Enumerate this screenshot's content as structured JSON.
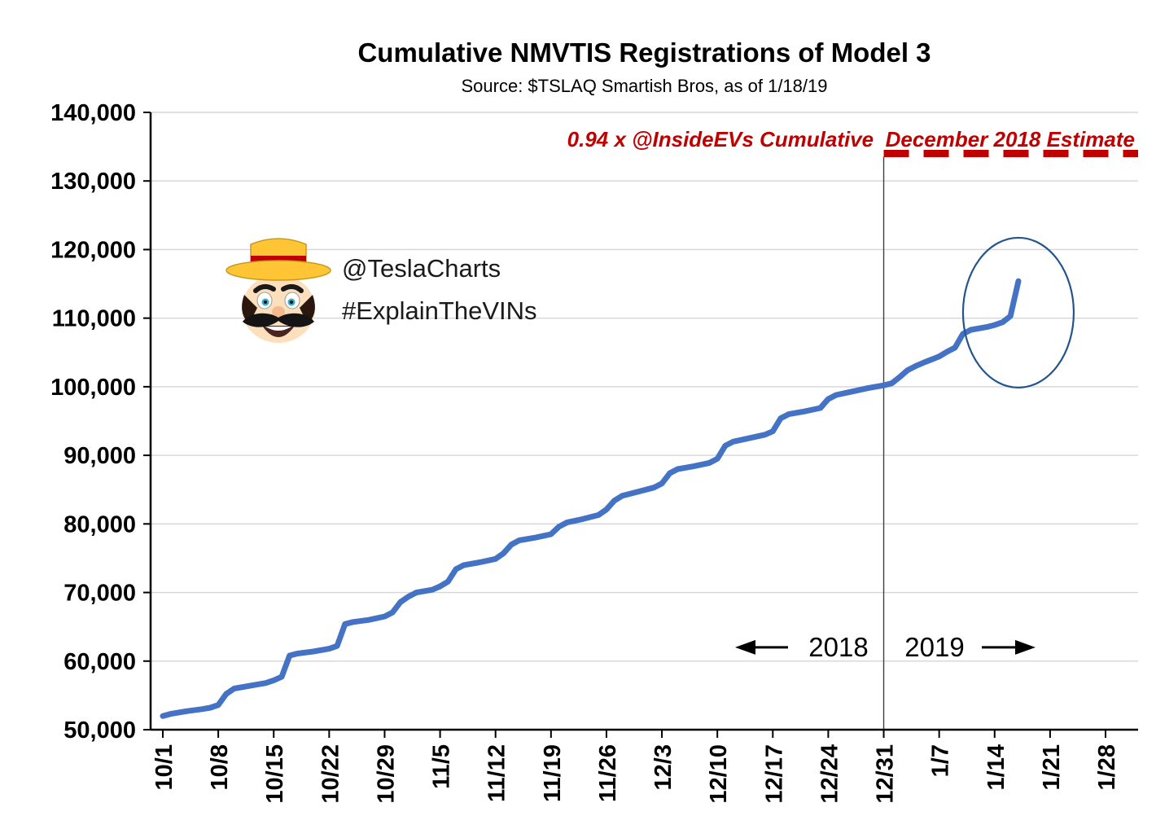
{
  "header": {
    "title": "Cumulative NMVTIS Registrations of Model 3",
    "subtitle": "Source: $TSLAQ Smartish Bros, as of 1/18/19"
  },
  "annotations": {
    "estimate_label": "0.94 x @InsideEVs Cumulative  December 2018 Estimate",
    "watermark_handle": "@TeslaCharts",
    "watermark_hashtag": "#ExplainTheVINs",
    "year_left": "2018",
    "year_right": "2019",
    "year_arrow_value": 62000
  },
  "colors": {
    "line": "#4472C4",
    "estimate": "#C00000",
    "ellipse": "#24548C",
    "grid": "#D6D6D6",
    "axis": "#000000",
    "divider": "#404040"
  },
  "chart_data": {
    "type": "line",
    "title": "Cumulative NMVTIS Registrations of Model 3",
    "subtitle": "Source: $TSLAQ Smartish Bros, as of 1/18/19",
    "xlabel": "",
    "ylabel": "",
    "grid": "horizontal",
    "legend": "none",
    "ylim": [
      50000,
      140000
    ],
    "y_tick_step": 10000,
    "y_tick_labels": [
      "50,000",
      "60,000",
      "70,000",
      "80,000",
      "90,000",
      "100,000",
      "110,000",
      "120,000",
      "130,000",
      "140,000"
    ],
    "x_ticks": [
      "10/1",
      "10/8",
      "10/15",
      "10/22",
      "10/29",
      "11/5",
      "11/12",
      "11/19",
      "11/26",
      "12/3",
      "12/10",
      "12/17",
      "12/24",
      "12/31",
      "1/7",
      "1/14",
      "1/21",
      "1/28"
    ],
    "x_range_days": 119,
    "estimate_line": {
      "value": 134000,
      "start_date": "12/31",
      "label": "0.94 x @InsideEVs Cumulative  December 2018 Estimate"
    },
    "year_divider_date": "12/31",
    "highlight_ellipse": {
      "center_date": "1/17",
      "center_value": 110800
    },
    "series": [
      {
        "name": "Cumulative NMVTIS registrations of Model 3",
        "points": [
          [
            "10/1",
            52000
          ],
          [
            "10/2",
            52300
          ],
          [
            "10/4",
            52700
          ],
          [
            "10/6",
            53000
          ],
          [
            "10/7",
            53200
          ],
          [
            "10/8",
            53600
          ],
          [
            "10/9",
            55200
          ],
          [
            "10/10",
            56000
          ],
          [
            "10/12",
            56400
          ],
          [
            "10/14",
            56800
          ],
          [
            "10/15",
            57200
          ],
          [
            "10/16",
            57700
          ],
          [
            "10/17",
            60800
          ],
          [
            "10/18",
            61100
          ],
          [
            "10/20",
            61400
          ],
          [
            "10/22",
            61800
          ],
          [
            "10/23",
            62200
          ],
          [
            "10/24",
            65400
          ],
          [
            "10/25",
            65700
          ],
          [
            "10/27",
            66000
          ],
          [
            "10/29",
            66500
          ],
          [
            "10/30",
            67100
          ],
          [
            "10/31",
            68600
          ],
          [
            "11/1",
            69400
          ],
          [
            "11/2",
            70000
          ],
          [
            "11/4",
            70400
          ],
          [
            "11/5",
            70900
          ],
          [
            "11/6",
            71600
          ],
          [
            "11/7",
            73400
          ],
          [
            "11/8",
            74000
          ],
          [
            "11/10",
            74400
          ],
          [
            "11/12",
            74900
          ],
          [
            "11/13",
            75700
          ],
          [
            "11/14",
            77000
          ],
          [
            "11/15",
            77600
          ],
          [
            "11/17",
            78000
          ],
          [
            "11/19",
            78500
          ],
          [
            "11/20",
            79600
          ],
          [
            "11/21",
            80200
          ],
          [
            "11/23",
            80700
          ],
          [
            "11/25",
            81300
          ],
          [
            "11/26",
            82100
          ],
          [
            "11/27",
            83400
          ],
          [
            "11/28",
            84100
          ],
          [
            "11/30",
            84700
          ],
          [
            "12/2",
            85300
          ],
          [
            "12/3",
            85900
          ],
          [
            "12/4",
            87400
          ],
          [
            "12/5",
            88000
          ],
          [
            "12/7",
            88400
          ],
          [
            "12/9",
            88900
          ],
          [
            "12/10",
            89500
          ],
          [
            "12/11",
            91400
          ],
          [
            "12/12",
            92000
          ],
          [
            "12/14",
            92500
          ],
          [
            "12/16",
            93000
          ],
          [
            "12/17",
            93500
          ],
          [
            "12/18",
            95400
          ],
          [
            "12/19",
            96000
          ],
          [
            "12/21",
            96400
          ],
          [
            "12/23",
            96900
          ],
          [
            "12/24",
            98200
          ],
          [
            "12/25",
            98800
          ],
          [
            "12/27",
            99300
          ],
          [
            "12/29",
            99800
          ],
          [
            "12/31",
            100200
          ],
          [
            "1/1",
            100500
          ],
          [
            "1/2",
            101400
          ],
          [
            "1/3",
            102400
          ],
          [
            "1/4",
            103000
          ],
          [
            "1/5",
            103500
          ],
          [
            "1/7",
            104400
          ],
          [
            "1/8",
            105100
          ],
          [
            "1/9",
            105700
          ],
          [
            "1/10",
            107700
          ],
          [
            "1/11",
            108300
          ],
          [
            "1/13",
            108700
          ],
          [
            "1/14",
            109000
          ],
          [
            "1/15",
            109400
          ],
          [
            "1/16",
            110300
          ],
          [
            "1/17",
            115400
          ]
        ]
      }
    ]
  }
}
